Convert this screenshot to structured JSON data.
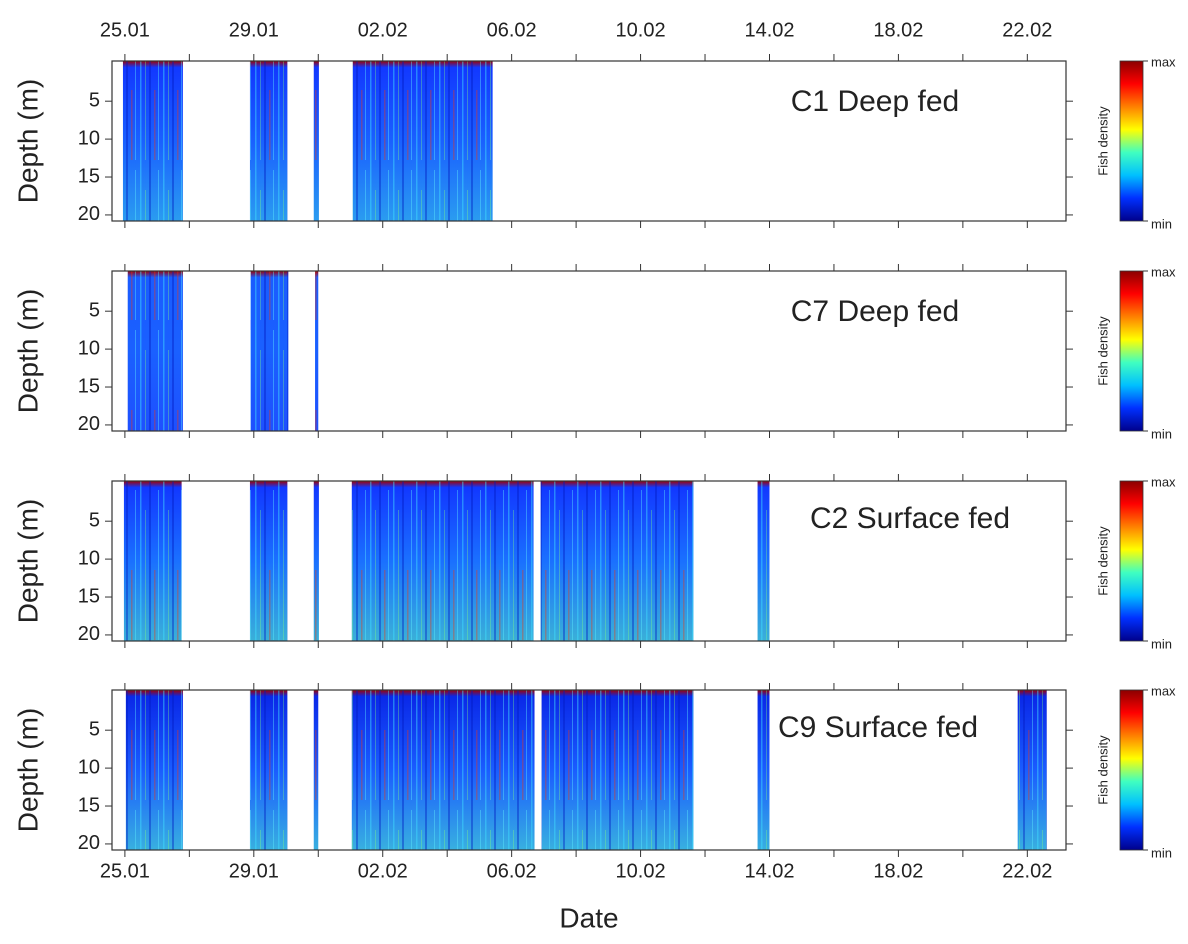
{
  "chart_data": [
    {
      "type": "heatmap",
      "label": "C1 Deep fed",
      "ylabel": "Depth (m)",
      "xlim": [
        -0.4,
        29.2
      ],
      "ylim": [
        20.8,
        -0.3
      ],
      "yticks": [
        5,
        10,
        15,
        20
      ],
      "xaxis": "top",
      "xticks": [
        {
          "value": 0,
          "label": "25.01"
        },
        {
          "value": 4,
          "label": "29.01"
        },
        {
          "value": 8,
          "label": "02.02"
        },
        {
          "value": 12,
          "label": "06.02"
        },
        {
          "value": 16,
          "label": "10.02"
        },
        {
          "value": 20,
          "label": "14.02"
        },
        {
          "value": 24,
          "label": "18.02"
        },
        {
          "value": 28,
          "label": "22.02"
        }
      ],
      "xticks_minor": [
        2,
        6,
        10,
        14,
        18,
        22,
        26
      ],
      "segments": [
        {
          "start": -0.06,
          "end": 1.8
        },
        {
          "start": 3.88,
          "end": 5.04
        },
        {
          "start": 5.86,
          "end": 6.02
        },
        {
          "start": 7.07,
          "end": 11.41
        }
      ],
      "segment_colors": [
        "#a00000",
        "#1238ff",
        "#1a60ff",
        "#2a9cf0"
      ],
      "colorbar": {
        "label": "Fish density",
        "max_label": "max",
        "min_label": "min",
        "colors": [
          "#00008b",
          "#0030ff",
          "#00c0ff",
          "#40ffc0",
          "#ffff00",
          "#ff8000",
          "#ff0000",
          "#8b0000"
        ]
      }
    },
    {
      "type": "heatmap",
      "label": "C7 Deep fed",
      "ylabel": "Depth (m)",
      "xlim": [
        -0.4,
        29.2
      ],
      "ylim": [
        20.8,
        -0.3
      ],
      "yticks": [
        5,
        10,
        15,
        20
      ],
      "xaxis": "none",
      "xticks": [
        0,
        2,
        4,
        6,
        8,
        10,
        12,
        14,
        16,
        18,
        20,
        22,
        24,
        26,
        28
      ],
      "segments": [
        {
          "start": 0.09,
          "end": 1.8
        },
        {
          "start": 3.9,
          "end": 5.07
        },
        {
          "start": 5.9,
          "end": 6.0
        }
      ],
      "segment_colors": [
        "#a00000",
        "#1a5cff",
        "#1a60ff",
        "#1e50ff"
      ],
      "colorbar": {
        "label": "Fish density",
        "max_label": "max",
        "min_label": "min",
        "colors": [
          "#00008b",
          "#0030ff",
          "#00c0ff",
          "#40ffc0",
          "#ffff00",
          "#ff8000",
          "#ff0000",
          "#8b0000"
        ]
      }
    },
    {
      "type": "heatmap",
      "label": "C2 Surface fed",
      "ylabel": "Depth (m)",
      "xlim": [
        -0.4,
        29.2
      ],
      "ylim": [
        20.8,
        -0.3
      ],
      "yticks": [
        5,
        10,
        15,
        20
      ],
      "xaxis": "none",
      "xticks": [
        0,
        2,
        4,
        6,
        8,
        10,
        12,
        14,
        16,
        18,
        20,
        22,
        24,
        26,
        28
      ],
      "segments": [
        {
          "start": -0.03,
          "end": 1.76
        },
        {
          "start": 3.88,
          "end": 5.04
        },
        {
          "start": 5.86,
          "end": 6.02
        },
        {
          "start": 7.04,
          "end": 12.68
        },
        {
          "start": 12.9,
          "end": 17.64
        },
        {
          "start": 19.63,
          "end": 20.0
        }
      ],
      "segment_colors": [
        "#a00000",
        "#1238ff",
        "#1a70ff",
        "#3ab0d8"
      ],
      "colorbar": {
        "label": "Fish density",
        "max_label": "max",
        "min_label": "min",
        "colors": [
          "#00008b",
          "#0030ff",
          "#00c0ff",
          "#40ffc0",
          "#ffff00",
          "#ff8000",
          "#ff0000",
          "#8b0000"
        ]
      }
    },
    {
      "type": "heatmap",
      "label": "C9 Surface fed",
      "ylabel": "Depth (m)",
      "xlabel": "Date",
      "xlim": [
        -0.4,
        29.2
      ],
      "ylim": [
        20.8,
        -0.3
      ],
      "yticks": [
        5,
        10,
        15,
        20
      ],
      "xaxis": "bottom",
      "xticks": [
        {
          "value": 0,
          "label": "25.01"
        },
        {
          "value": 4,
          "label": "29.01"
        },
        {
          "value": 8,
          "label": "02.02"
        },
        {
          "value": 12,
          "label": "06.02"
        },
        {
          "value": 16,
          "label": "10.02"
        },
        {
          "value": 20,
          "label": "14.02"
        },
        {
          "value": 24,
          "label": "18.02"
        },
        {
          "value": 28,
          "label": "22.02"
        }
      ],
      "xticks_minor": [
        2,
        6,
        10,
        14,
        18,
        22,
        26
      ],
      "segments": [
        {
          "start": 0.03,
          "end": 1.8
        },
        {
          "start": 3.88,
          "end": 5.04
        },
        {
          "start": 5.86,
          "end": 6.0
        },
        {
          "start": 7.04,
          "end": 12.71
        },
        {
          "start": 12.93,
          "end": 17.64
        },
        {
          "start": 19.63,
          "end": 20.0
        },
        {
          "start": 27.7,
          "end": 28.6
        }
      ],
      "segment_colors": [
        "#a00000",
        "#0a28e8",
        "#1a5cff",
        "#38b0e0"
      ],
      "colorbar": {
        "label": "Fish density",
        "max_label": "max",
        "min_label": "min",
        "colors": [
          "#00008b",
          "#0030ff",
          "#00c0ff",
          "#40ffc0",
          "#ffff00",
          "#ff8000",
          "#ff0000",
          "#8b0000"
        ]
      }
    }
  ]
}
